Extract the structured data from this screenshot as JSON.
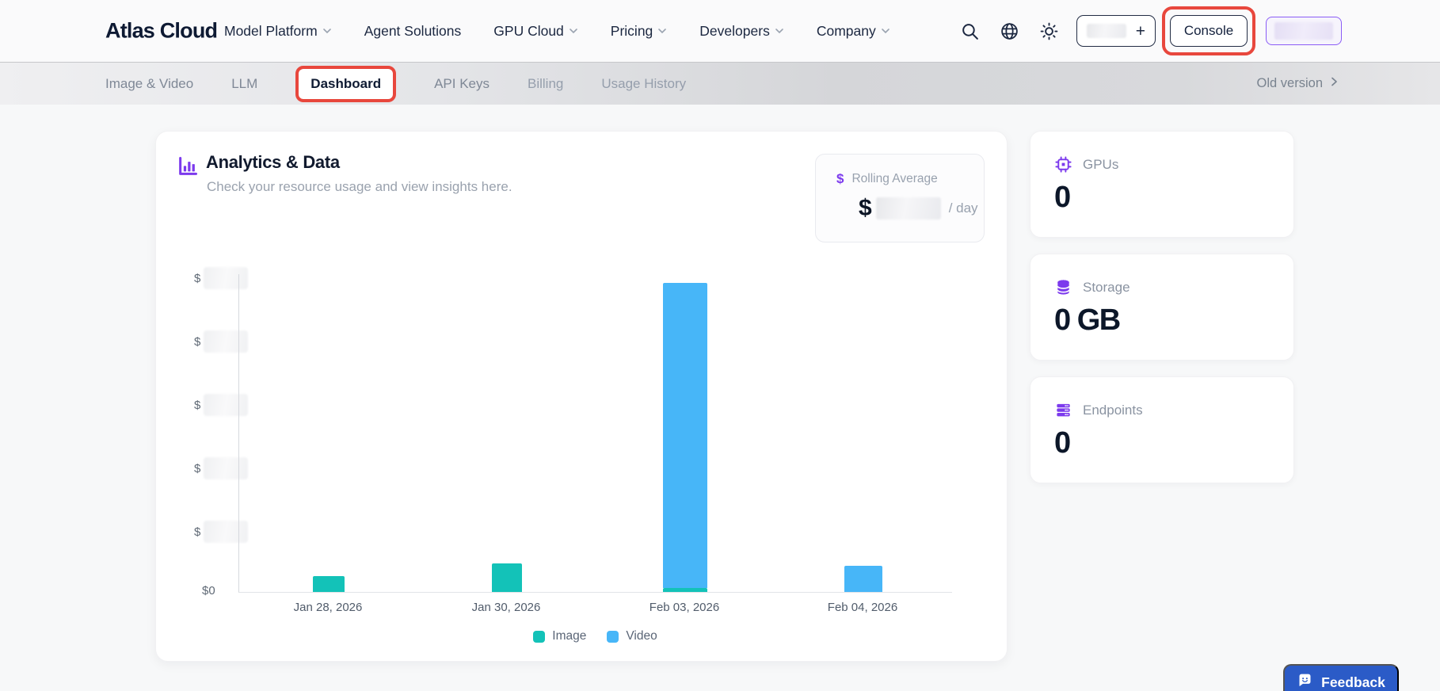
{
  "brand": {
    "name": "Atlas Cloud"
  },
  "top_nav": {
    "items": [
      {
        "label": "Model Platform",
        "chevron": true
      },
      {
        "label": "Agent Solutions",
        "chevron": false
      },
      {
        "label": "GPU Cloud",
        "chevron": true
      },
      {
        "label": "Pricing",
        "chevron": true
      },
      {
        "label": "Developers",
        "chevron": true
      },
      {
        "label": "Company",
        "chevron": true
      }
    ],
    "icons": [
      "search-icon",
      "globe-language-icon",
      "sun-theme-icon"
    ],
    "credits_button": {
      "plus": "+",
      "value_redacted": true
    },
    "console_button": {
      "label": "Console",
      "annotated_red_box": true
    },
    "account_button": {
      "value_redacted": true
    }
  },
  "sub_nav": {
    "tabs": [
      {
        "label": "Image & Video",
        "active": false
      },
      {
        "label": "LLM",
        "active": false
      },
      {
        "label": "Dashboard",
        "active": true,
        "annotated_red_box": true
      },
      {
        "label": "API Keys",
        "active": false
      },
      {
        "label": "Billing",
        "active": false
      },
      {
        "label": "Usage History",
        "active": false
      }
    ],
    "old_version_label": "Old version"
  },
  "analytics_card": {
    "title": "Analytics & Data",
    "subtitle": "Check your resource usage and view insights here.",
    "rolling_average": {
      "icon_symbol": "$",
      "label": "Rolling Average",
      "currency_symbol": "$",
      "value_redacted": true,
      "suffix": "/ day"
    }
  },
  "chart_data": {
    "type": "bar",
    "stacked": true,
    "title": "",
    "categories": [
      "Jan 28, 2026",
      "Jan 30, 2026",
      "Feb 03, 2026",
      "Feb 04, 2026"
    ],
    "series": [
      {
        "name": "Image",
        "color": "#13c2b8",
        "values_fraction_of_ymax": [
          0.05,
          0.09,
          0.013,
          0
        ]
      },
      {
        "name": "Video",
        "color": "#47b6f8",
        "values_fraction_of_ymax": [
          0,
          0,
          0.958,
          0.082
        ]
      }
    ],
    "y_axis": {
      "currency": "USD",
      "values_redacted": true,
      "ticks_bottom_to_top": [
        {
          "label": "$0",
          "redacted": false
        },
        {
          "label": "$",
          "redacted": true
        },
        {
          "label": "$",
          "redacted": true
        },
        {
          "label": "$",
          "redacted": true
        },
        {
          "label": "$",
          "redacted": true
        },
        {
          "label": "$",
          "redacted": true
        }
      ]
    },
    "legend_position": "bottom",
    "grid": false
  },
  "stats_cards": [
    {
      "icon": "gpu-chip-icon",
      "label": "GPUs",
      "value": "0"
    },
    {
      "icon": "storage-database-icon",
      "label": "Storage",
      "value": "0 GB"
    },
    {
      "icon": "endpoints-server-icon",
      "label": "Endpoints",
      "value": "0"
    }
  ],
  "feedback_button": {
    "label": "Feedback"
  },
  "colors": {
    "accent_purple": "#7c3aed",
    "annotation_red": "#e8473d",
    "feedback_blue": "#2b5bc7",
    "text_dark": "#101c36",
    "text_gray": "#8a93a1",
    "bar_image": "#13c2b8",
    "bar_video": "#47b6f8"
  }
}
